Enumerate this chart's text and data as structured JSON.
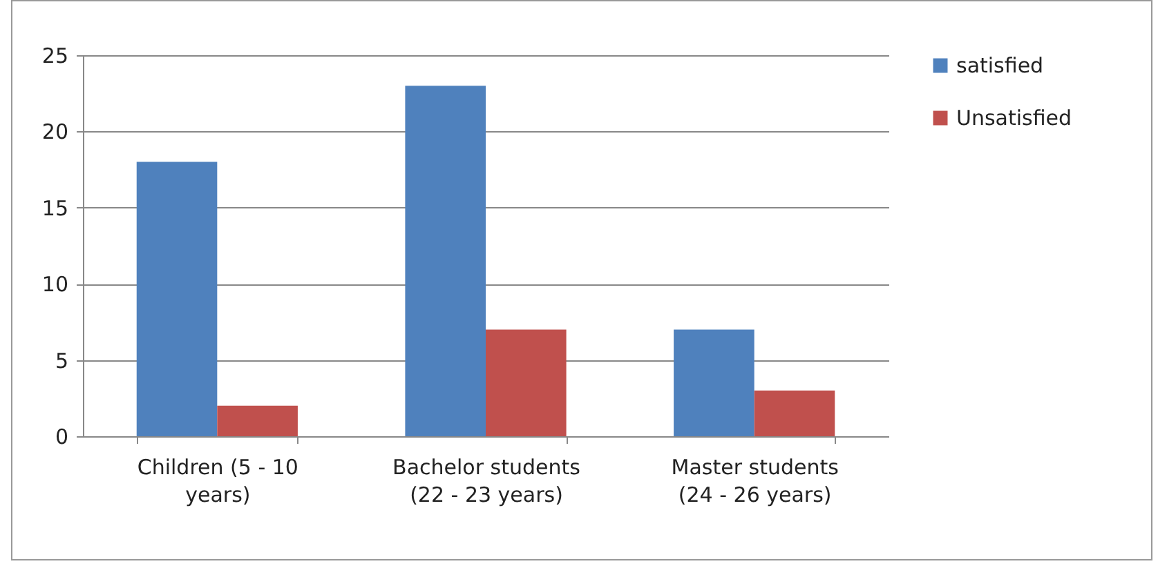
{
  "chart_data": {
    "type": "bar",
    "categories": [
      "Children (5 - 10 years)",
      "Bachelor students (22 - 23 years)",
      "Master students (24 - 26 years)"
    ],
    "series": [
      {
        "name": "satisfied",
        "color": "#4f81bd",
        "values": [
          18,
          23,
          7
        ]
      },
      {
        "name": "Unsatisfied",
        "color": "#c0504d",
        "values": [
          2,
          7,
          3
        ]
      }
    ],
    "ylim": [
      0,
      25
    ],
    "yticks": [
      0,
      5,
      10,
      15,
      20,
      25
    ],
    "grid": "y",
    "legend": "right"
  }
}
